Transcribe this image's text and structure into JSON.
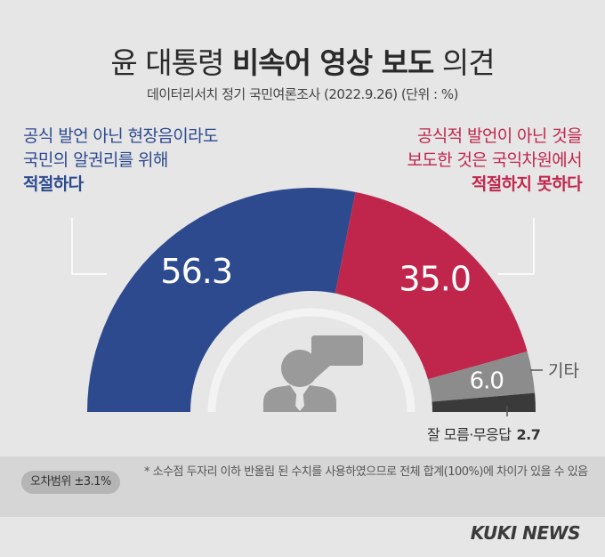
{
  "title": {
    "part1": "윤 대통령 ",
    "part2": "비속어 영상 보도",
    "part3": " 의견"
  },
  "subtitle": "데이터리서치 정기 국민여론조사 (2022.9.26)   (단위 : %)",
  "left_label": {
    "line1": "공식 발언 아닌 현장음이라도",
    "line2": "국민의 알권리를 위해",
    "line3": "적절하다"
  },
  "right_label": {
    "line1": "공식적 발언이 아닌 것을",
    "line2": "보도한 것은 국익차원에서",
    "line3": "적절하지 못하다"
  },
  "other_label": "기타",
  "dontknow_label": "잘 모름·무응답",
  "dontknow_value": "2.7",
  "error_margin": "오차범위 ±3.1%",
  "note": "* 소수점 두자리 이하 반올림 된 수치를 사용하였으므로 전체 합계(100%)에 차이가 있을 수 있음",
  "brand": "KUKI NEWS",
  "colors": {
    "appropriate": "#2d4a8f",
    "inappropriate": "#c0264c",
    "other": "#8c8c8c",
    "dontknow": "#3a3a3a",
    "inner_arc": "#f3f3f3",
    "icon": "#9a9a9a"
  },
  "chart_data": {
    "type": "pie",
    "variant": "semi-donut",
    "title": "윤 대통령 비속어 영상 보도 의견",
    "unit": "%",
    "categories": [
      "적절하다",
      "적절하지 못하다",
      "기타",
      "잘 모름·무응답"
    ],
    "values": [
      56.3,
      35.0,
      6.0,
      2.7
    ],
    "labels": [
      "56.3",
      "35.0",
      "6.0",
      "2.7"
    ]
  }
}
